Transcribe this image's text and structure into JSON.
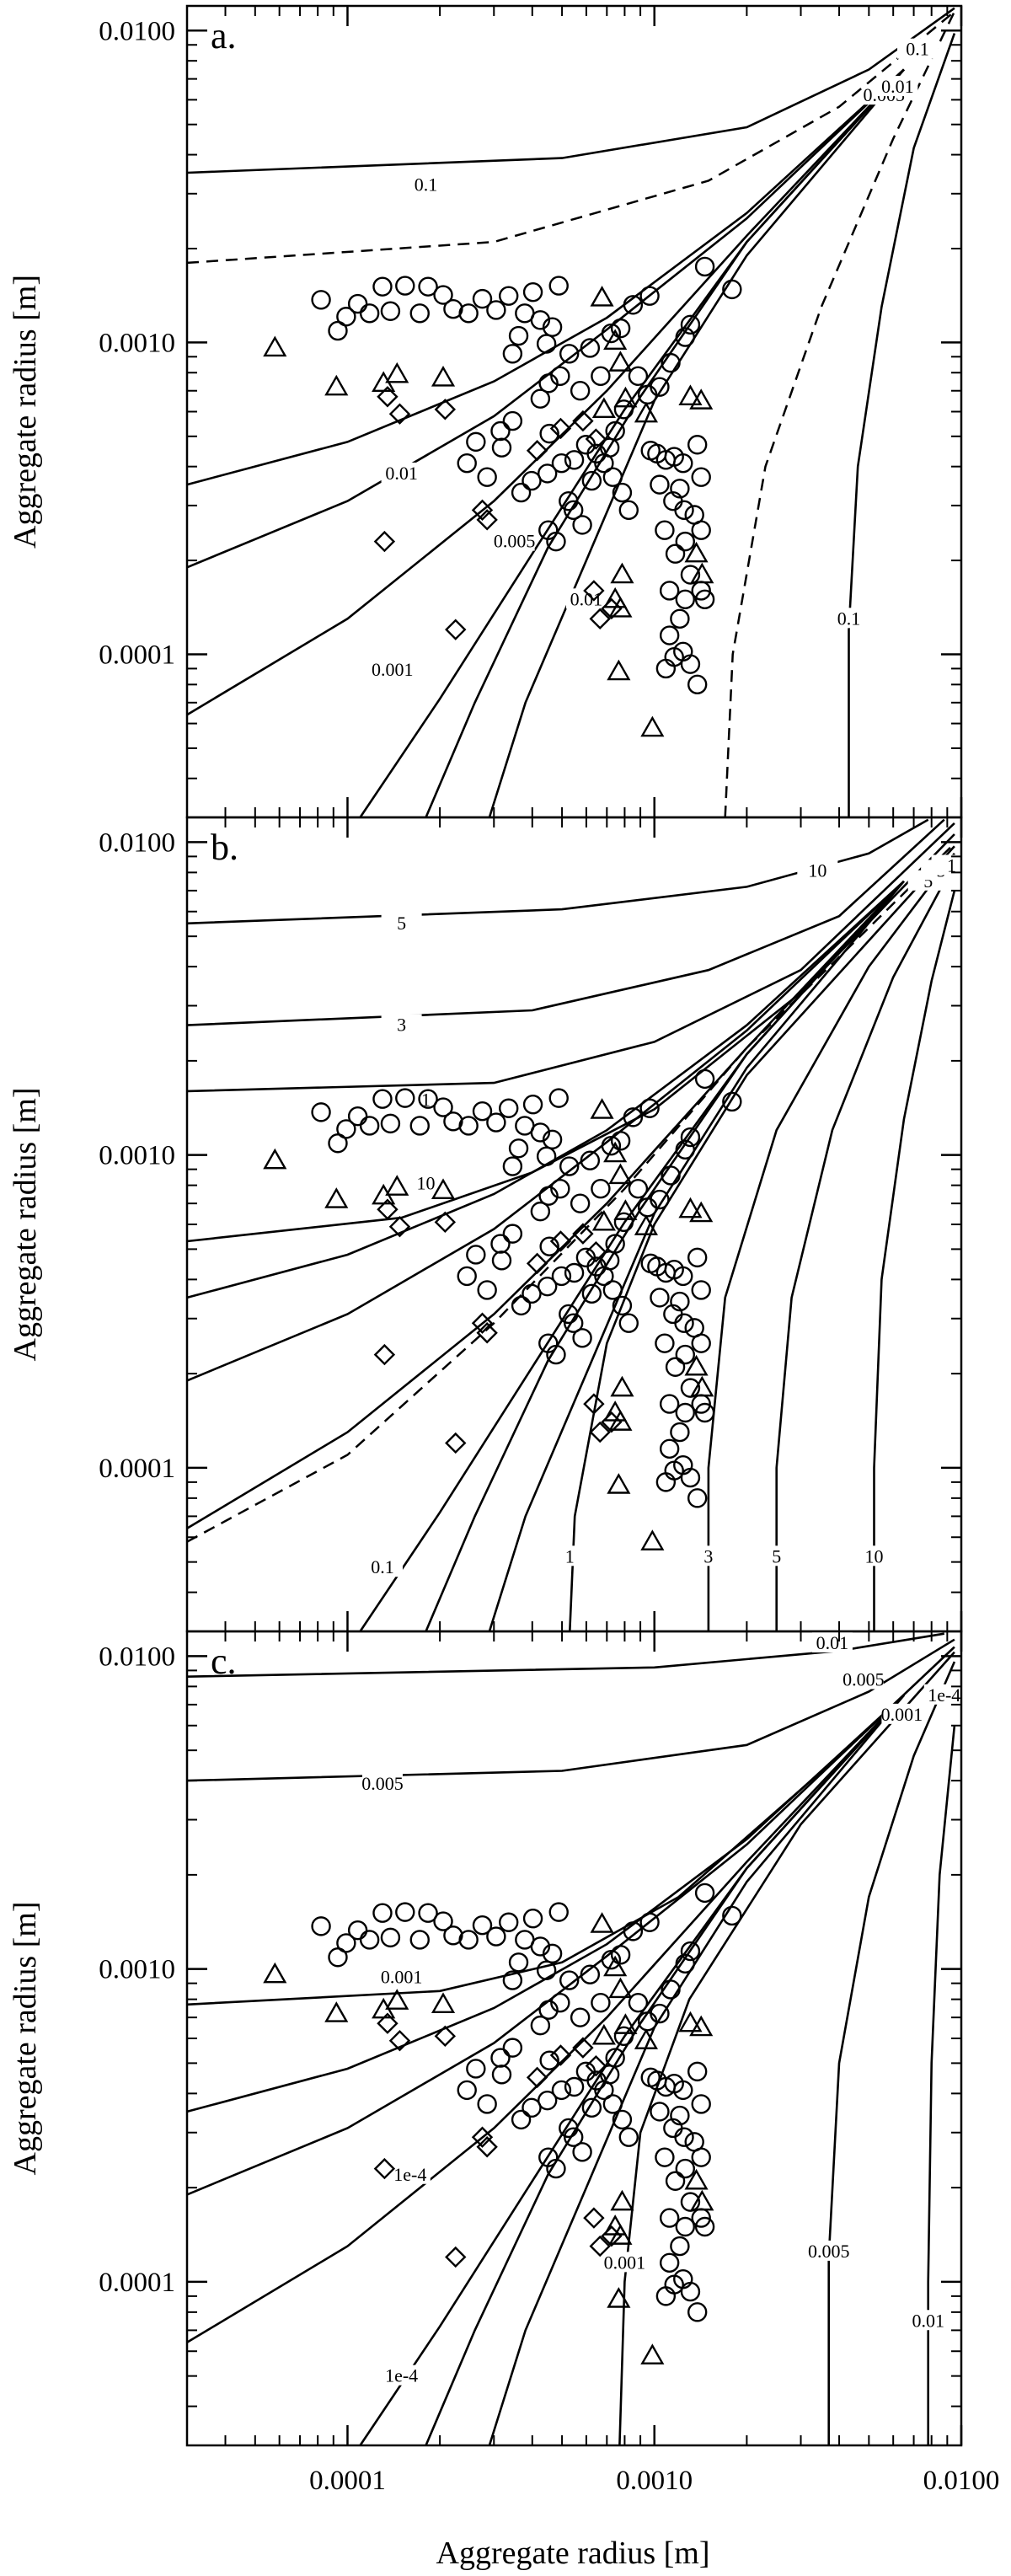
{
  "chart_data": [
    {
      "panel": "a.",
      "type": "scatter",
      "xlabel": "Aggregate radius [m]",
      "ylabel": "Aggregate radius [m]",
      "xscale": "log",
      "yscale": "log",
      "xlim": [
        3e-05,
        0.01
      ],
      "ylim": [
        3e-05,
        0.012
      ],
      "yticks": [
        "0.0100",
        "0.0010",
        "0.0001"
      ],
      "xticks": [
        "0.0001",
        "0.0010",
        "0.0100"
      ],
      "contour_labels": [
        "0.1",
        "0.1",
        "0.01",
        "0.005",
        "0.001",
        "0.01",
        "0.005",
        "0.01",
        "0.1"
      ]
    },
    {
      "panel": "b.",
      "type": "scatter",
      "xlabel": "Aggregate radius [m]",
      "ylabel": "Aggregate radius [m]",
      "xscale": "log",
      "yscale": "log",
      "xlim": [
        3e-05,
        0.01
      ],
      "ylim": [
        3e-05,
        0.012
      ],
      "yticks": [
        "0.0100",
        "0.0010",
        "0.0001"
      ],
      "xticks": [
        "0.0001",
        "0.0010",
        "0.0100"
      ],
      "contour_labels": [
        "10",
        "5",
        "3",
        "1",
        "10",
        "5",
        "3",
        "1",
        "0.1",
        "1",
        "3",
        "5",
        "10"
      ]
    },
    {
      "panel": "c.",
      "type": "scatter",
      "xlabel": "Aggregate radius [m]",
      "ylabel": "Aggregate radius [m]",
      "xscale": "log",
      "yscale": "log",
      "xlim": [
        3e-05,
        0.01
      ],
      "ylim": [
        3e-05,
        0.012
      ],
      "yticks": [
        "0.0100",
        "0.0010",
        "0.0001"
      ],
      "xticks": [
        "0.0001",
        "0.0010",
        "0.0100"
      ],
      "contour_labels": [
        "0.01",
        "0.005",
        "0.005",
        "0.001",
        "0.001",
        "1e-4",
        "1e-4",
        "0.001",
        "0.005",
        "0.01",
        "1e-4"
      ]
    }
  ],
  "markers": {
    "circles": [
      [
        8.2e-05,
        0.00137
      ],
      [
        9.3e-05,
        0.00109
      ],
      [
        9.9e-05,
        0.00121
      ],
      [
        0.000108,
        0.00133
      ],
      [
        0.000118,
        0.00124
      ],
      [
        0.00013,
        0.00151
      ],
      [
        0.000138,
        0.00126
      ],
      [
        0.000154,
        0.00152
      ],
      [
        0.000172,
        0.00124
      ],
      [
        0.000183,
        0.00151
      ],
      [
        0.000205,
        0.00142
      ],
      [
        0.000221,
        0.00128
      ],
      [
        0.000248,
        0.00124
      ],
      [
        0.000275,
        0.00138
      ],
      [
        0.000305,
        0.00127
      ],
      [
        0.000335,
        0.00141
      ],
      [
        0.000345,
        0.00092
      ],
      [
        0.000361,
        0.00105
      ],
      [
        0.000378,
        0.00124
      ],
      [
        0.000402,
        0.00145
      ],
      [
        0.000425,
        0.00118
      ],
      [
        0.000445,
        0.00099
      ],
      [
        0.000465,
        0.00112
      ],
      [
        0.000488,
        0.00152
      ],
      [
        0.000452,
        0.00074
      ],
      [
        0.000493,
        0.00078
      ],
      [
        0.000528,
        0.00092
      ],
      [
        0.000573,
        0.0007
      ],
      [
        0.000617,
        0.00096
      ],
      [
        0.000668,
        0.00078
      ],
      [
        0.000723,
        0.00107
      ],
      [
        0.000776,
        0.00111
      ],
      [
        0.000852,
        0.00132
      ],
      [
        0.000965,
        0.00141
      ],
      [
        0.00146,
        0.00175
      ],
      [
        0.00179,
        0.00148
      ],
      [
        0.00131,
        0.00114
      ],
      [
        0.00126,
        0.00104
      ],
      [
        0.00113,
        0.00086
      ],
      [
        0.00104,
        0.00072
      ],
      [
        0.00095,
        0.00068
      ],
      [
        0.000885,
        0.00078
      ],
      [
        0.000795,
        0.00061
      ],
      [
        0.000745,
        0.00052
      ],
      [
        0.000715,
        0.00046
      ],
      [
        0.000648,
        0.00044
      ],
      [
        0.000598,
        0.00047
      ],
      [
        0.000548,
        0.00042
      ],
      [
        0.000498,
        0.00041
      ],
      [
        0.000448,
        0.00038
      ],
      [
        0.000398,
        0.00036
      ],
      [
        0.000368,
        0.00033
      ],
      [
        0.000315,
        0.00052
      ],
      [
        0.000345,
        0.00056
      ],
      [
        0.000262,
        0.00048
      ],
      [
        0.000245,
        0.00041
      ],
      [
        0.000285,
        0.00037
      ],
      [
        0.000318,
        0.00046
      ],
      [
        0.000425,
        0.00066
      ],
      [
        0.000455,
        0.00051
      ],
      [
        0.000525,
        0.00031
      ],
      [
        0.000545,
        0.00029
      ],
      [
        0.000478,
        0.00023
      ],
      [
        0.000451,
        0.00025
      ],
      [
        0.000582,
        0.00026
      ],
      [
        0.000625,
        0.00036
      ],
      [
        0.000685,
        0.00041
      ],
      [
        0.000732,
        0.00037
      ],
      [
        0.000785,
        0.00033
      ],
      [
        0.000825,
        0.00029
      ],
      [
        0.000972,
        0.00045
      ],
      [
        0.00102,
        0.00044
      ],
      [
        0.00109,
        0.00042
      ],
      [
        0.00116,
        0.00043
      ],
      [
        0.00124,
        0.00041
      ],
      [
        0.00138,
        0.00047
      ],
      [
        0.00142,
        0.00037
      ],
      [
        0.00121,
        0.00034
      ],
      [
        0.00115,
        0.00031
      ],
      [
        0.00104,
        0.00035
      ],
      [
        0.00135,
        0.00028
      ],
      [
        0.00142,
        0.00025
      ],
      [
        0.00126,
        0.00023
      ],
      [
        0.00131,
        0.00018
      ],
      [
        0.00112,
        0.00016
      ],
      [
        0.00126,
        0.00015
      ],
      [
        0.00142,
        0.00016
      ],
      [
        0.00146,
        0.00015
      ],
      [
        0.00121,
        0.00013
      ],
      [
        0.00112,
        0.000115
      ],
      [
        0.00124,
        0.000102
      ],
      [
        0.00131,
        9.3e-05
      ],
      [
        0.00109,
        9e-05
      ],
      [
        0.00116,
        9.8e-05
      ],
      [
        0.00138,
        8e-05
      ],
      [
        0.00125,
        0.00029
      ],
      [
        0.00108,
        0.00025
      ],
      [
        0.00117,
        0.00021
      ]
    ],
    "triangles": [
      [
        5.8e-05,
        0.00096
      ],
      [
        9.2e-05,
        0.00072
      ],
      [
        0.000131,
        0.00074
      ],
      [
        0.000145,
        0.00079
      ],
      [
        0.000205,
        0.00077
      ],
      [
        0.000675,
        0.00139
      ],
      [
        0.000745,
        0.00101
      ],
      [
        0.000775,
        0.00086
      ],
      [
        0.000805,
        0.00066
      ],
      [
        0.000685,
        0.00061
      ],
      [
        0.00094,
        0.00059
      ],
      [
        0.00131,
        0.00067
      ],
      [
        0.00142,
        0.00065
      ],
      [
        0.00143,
        0.00018
      ],
      [
        0.00137,
        0.00021
      ],
      [
        0.000785,
        0.00018
      ],
      [
        0.000745,
        0.00015
      ],
      [
        0.000775,
        0.00014
      ],
      [
        0.000765,
        8.8e-05
      ],
      [
        0.000985,
        5.8e-05
      ]
    ],
    "diamonds": [
      [
        0.000135,
        0.00067
      ],
      [
        0.000148,
        0.00059
      ],
      [
        0.000208,
        0.00061
      ],
      [
        0.000132,
        0.00023
      ],
      [
        0.000225,
        0.00012
      ],
      [
        0.000275,
        0.00029
      ],
      [
        0.000285,
        0.00027
      ],
      [
        0.000415,
        0.00045
      ],
      [
        0.000495,
        0.00053
      ],
      [
        0.000585,
        0.00056
      ],
      [
        0.000645,
        0.00049
      ],
      [
        0.000635,
        0.00016
      ],
      [
        0.000725,
        0.00014
      ],
      [
        0.000665,
        0.00013
      ]
    ]
  }
}
